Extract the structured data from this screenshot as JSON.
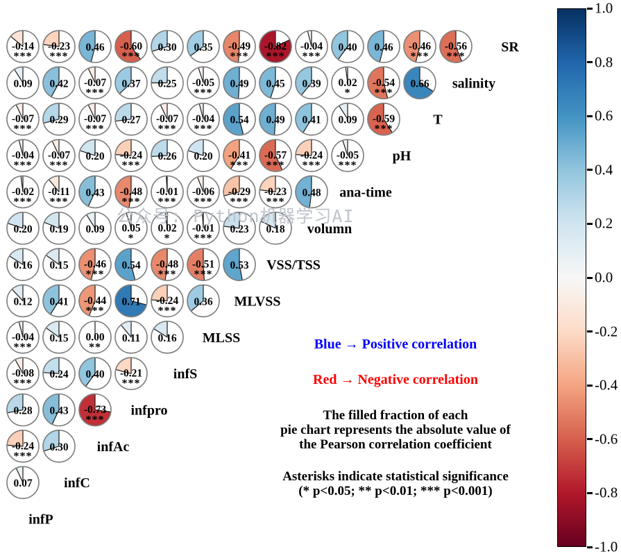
{
  "watermark": "公众号: Python机器学习AI",
  "legend": {
    "blue_note": "Blue → Positive correlation",
    "red_note": "Red → Negative correlation",
    "blue_color": "#0000ff",
    "red_color": "#ff0000",
    "fraction_note_lines": [
      "The filled fraction of each",
      "pie chart represents the absolute value of",
      "the Pearson correlation coefficient"
    ],
    "significance_note_lines": [
      "Asterisks indicate statistical significance",
      "(* p<0.05; ** p<0.01; *** p<0.001)"
    ]
  },
  "colorbar": {
    "min": -1.0,
    "max": 1.0,
    "ticks": [
      "1.0",
      "0.8",
      "0.6",
      "0.4",
      "0.2",
      "0.0",
      "-0.2",
      "-0.4",
      "-0.6",
      "-0.8",
      "-1.0"
    ],
    "colormap_stops": [
      {
        "v": -1.0,
        "c": "#67001f"
      },
      {
        "v": -0.8,
        "c": "#b2182b"
      },
      {
        "v": -0.6,
        "c": "#d6604d"
      },
      {
        "v": -0.4,
        "c": "#f4a582"
      },
      {
        "v": -0.2,
        "c": "#fddbc7"
      },
      {
        "v": 0.0,
        "c": "#f7f7f7"
      },
      {
        "v": 0.2,
        "c": "#d1e5f0"
      },
      {
        "v": 0.4,
        "c": "#92c5de"
      },
      {
        "v": 0.6,
        "c": "#4393c3"
      },
      {
        "v": 0.8,
        "c": "#2166ac"
      },
      {
        "v": 1.0,
        "c": "#053061"
      }
    ]
  },
  "chart_data": {
    "type": "heatmap",
    "title": "",
    "description": "Lower-triangular Pearson correlation matrix drawn as pie charts; filled fraction of each pie = |r|, fill drawn counterclockwise from 12 o'clock; blue = positive, red = negative; asterisks mark significance",
    "columns": [
      "infP",
      "infC",
      "infAc",
      "infpro",
      "infS",
      "MLSS",
      "MLVSS",
      "VSS/TSS",
      "volumn",
      "ana-time",
      "pH",
      "T",
      "salinity"
    ],
    "value_range": [
      -1.0,
      1.0
    ],
    "legend_position": "right colorbar",
    "rows": [
      {
        "label": "SR",
        "values": [
          -0.14,
          -0.23,
          0.46,
          -0.6,
          0.3,
          0.35,
          -0.49,
          -0.82,
          -0.04,
          0.4,
          0.46,
          -0.46,
          -0.56
        ],
        "significance": [
          "***",
          "***",
          "",
          "***",
          "",
          "",
          "***",
          "***",
          "***",
          "",
          "",
          "***",
          "***"
        ]
      },
      {
        "label": "salinity",
        "values": [
          0.09,
          0.42,
          -0.07,
          0.37,
          0.25,
          -0.05,
          0.49,
          0.45,
          0.39,
          0.02,
          -0.54,
          0.66
        ],
        "significance": [
          "",
          "",
          "***",
          "",
          "",
          "***",
          "",
          "",
          "",
          "*",
          "***",
          ""
        ]
      },
      {
        "label": "T",
        "values": [
          -0.07,
          0.29,
          -0.07,
          0.27,
          -0.07,
          -0.04,
          0.54,
          0.49,
          0.41,
          0.09,
          -0.59
        ],
        "significance": [
          "***",
          "",
          "***",
          "",
          "***",
          "***",
          "",
          "",
          "",
          "",
          "***"
        ]
      },
      {
        "label": "pH",
        "values": [
          -0.04,
          -0.07,
          0.2,
          -0.24,
          0.26,
          0.2,
          -0.41,
          -0.57,
          -0.24,
          -0.05
        ],
        "significance": [
          "***",
          "***",
          "",
          "***",
          "",
          "",
          "***",
          "***",
          "***",
          "***"
        ]
      },
      {
        "label": "ana-time",
        "values": [
          -0.02,
          -0.11,
          0.43,
          -0.48,
          -0.01,
          -0.06,
          -0.29,
          -0.23,
          0.48
        ],
        "significance": [
          "***",
          "***",
          "",
          "***",
          "***",
          "***",
          "***",
          "***",
          ""
        ]
      },
      {
        "label": "volumn",
        "values": [
          0.2,
          0.19,
          0.09,
          0.05,
          0.02,
          -0.01,
          0.23,
          0.18
        ],
        "significance": [
          "",
          "",
          "",
          "*",
          "*",
          "***",
          "",
          ""
        ]
      },
      {
        "label": "VSS/TSS",
        "values": [
          0.16,
          0.15,
          -0.46,
          0.54,
          -0.48,
          -0.51,
          0.53
        ],
        "significance": [
          "",
          "",
          "***",
          "",
          "***",
          "***",
          ""
        ]
      },
      {
        "label": "MLVSS",
        "values": [
          0.12,
          0.41,
          -0.44,
          0.71,
          -0.24,
          0.36
        ],
        "significance": [
          "",
          "",
          "***",
          "",
          "***",
          ""
        ]
      },
      {
        "label": "MLSS",
        "values": [
          -0.04,
          0.15,
          0.0,
          0.11,
          0.16
        ],
        "significance": [
          "***",
          "",
          "**",
          "",
          ""
        ]
      },
      {
        "label": "infS",
        "values": [
          -0.08,
          0.24,
          0.4,
          -0.21
        ],
        "significance": [
          "***",
          "",
          "",
          "***"
        ]
      },
      {
        "label": "infpro",
        "values": [
          0.28,
          0.43,
          -0.73
        ],
        "significance": [
          "",
          "",
          "***"
        ]
      },
      {
        "label": "infAc",
        "values": [
          -0.24,
          0.3
        ],
        "significance": [
          "***",
          ""
        ]
      },
      {
        "label": "infC",
        "values": [
          0.07
        ],
        "significance": [
          ""
        ]
      },
      {
        "label": "infP",
        "values": [],
        "significance": []
      }
    ]
  }
}
